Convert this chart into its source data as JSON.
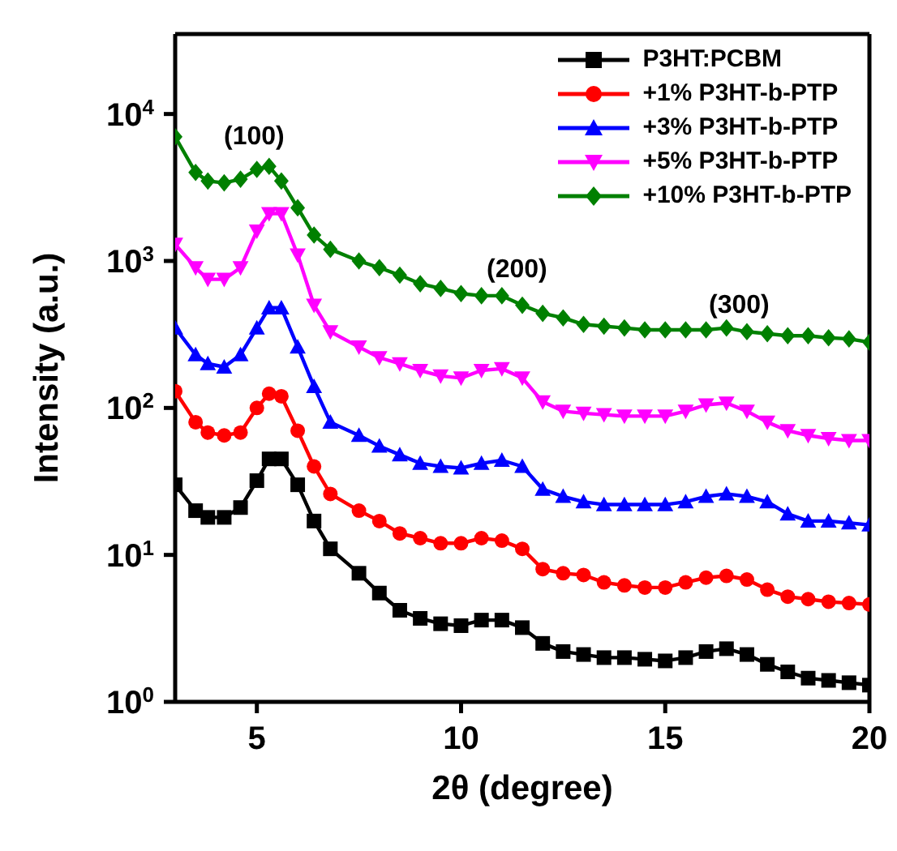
{
  "chart_data": {
    "type": "line",
    "xlabel": "2θ (degree)",
    "ylabel": "Intensity (a.u.)",
    "x": [
      3,
      3.5,
      3.8,
      4.2,
      4.6,
      5,
      5.3,
      5.6,
      6,
      6.4,
      6.8,
      7.5,
      8,
      8.5,
      9,
      9.5,
      10,
      10.5,
      11,
      11.5,
      12,
      12.5,
      13,
      13.5,
      14,
      14.5,
      15,
      15.5,
      16,
      16.5,
      17,
      17.5,
      18,
      18.5,
      19,
      19.5,
      20
    ],
    "series": [
      {
        "name": "P3HT:PCBM",
        "color": "#000000",
        "marker": "square",
        "values": [
          30,
          20,
          18,
          18,
          21,
          32,
          45,
          45,
          30,
          17,
          11,
          7.5,
          5.5,
          4.2,
          3.7,
          3.4,
          3.3,
          3.6,
          3.6,
          3.2,
          2.5,
          2.2,
          2.1,
          2.0,
          2.0,
          1.95,
          1.9,
          2.0,
          2.2,
          2.3,
          2.1,
          1.8,
          1.6,
          1.45,
          1.4,
          1.35,
          1.3
        ]
      },
      {
        "name": "+1% P3HT-b-PTP",
        "color": "#ff0000",
        "marker": "circle",
        "values": [
          130,
          80,
          68,
          65,
          68,
          100,
          125,
          120,
          70,
          40,
          26,
          20,
          17,
          14,
          13,
          12,
          12,
          13,
          12.5,
          11,
          8,
          7.5,
          7.3,
          6.5,
          6.2,
          6.0,
          6.0,
          6.5,
          7.0,
          7.2,
          6.8,
          5.8,
          5.2,
          5.0,
          4.8,
          4.7,
          4.6
        ]
      },
      {
        "name": "+3% P3HT-b-PTP",
        "color": "#0000ff",
        "marker": "triangle",
        "values": [
          350,
          230,
          200,
          190,
          230,
          350,
          480,
          480,
          260,
          140,
          80,
          65,
          55,
          48,
          42,
          40,
          39,
          42,
          44,
          40,
          28,
          25,
          23,
          22,
          22,
          22,
          22,
          23,
          25,
          26,
          25,
          23,
          19,
          17,
          17,
          16.5,
          16
        ]
      },
      {
        "name": "+5% P3HT-b-PTP",
        "color": "#ff00ff",
        "marker": "triangle-down",
        "values": [
          1300,
          900,
          750,
          750,
          900,
          1600,
          2100,
          2100,
          1100,
          500,
          330,
          260,
          220,
          200,
          180,
          165,
          160,
          180,
          185,
          160,
          110,
          95,
          92,
          90,
          88,
          88,
          88,
          95,
          105,
          108,
          95,
          80,
          70,
          65,
          62,
          60,
          60
        ]
      },
      {
        "name": "+10% P3HT-b-PTP",
        "color": "#008000",
        "marker": "diamond",
        "values": [
          7000,
          4000,
          3500,
          3400,
          3600,
          4200,
          4400,
          3500,
          2300,
          1500,
          1200,
          1000,
          900,
          800,
          700,
          650,
          600,
          580,
          580,
          500,
          440,
          410,
          370,
          360,
          350,
          340,
          340,
          340,
          340,
          350,
          330,
          320,
          310,
          310,
          300,
          295,
          280
        ]
      }
    ],
    "log": "y",
    "xlim": [
      3,
      20
    ],
    "xticks": [
      5,
      10,
      15,
      20
    ],
    "ylim": [
      1,
      35000
    ],
    "yticks": [
      {
        "value": 1,
        "label": "10$^{0}$"
      },
      {
        "value": 10,
        "label": "10$^{1}$"
      },
      {
        "value": 100,
        "label": "10$^{2}$"
      },
      {
        "value": 1000,
        "label": "10$^{3}$"
      },
      {
        "value": 10000,
        "label": "10$^{4}$"
      }
    ],
    "annotations": [
      "(100)",
      "(200)",
      "(300)"
    ],
    "grid": false,
    "legend": "top right"
  }
}
